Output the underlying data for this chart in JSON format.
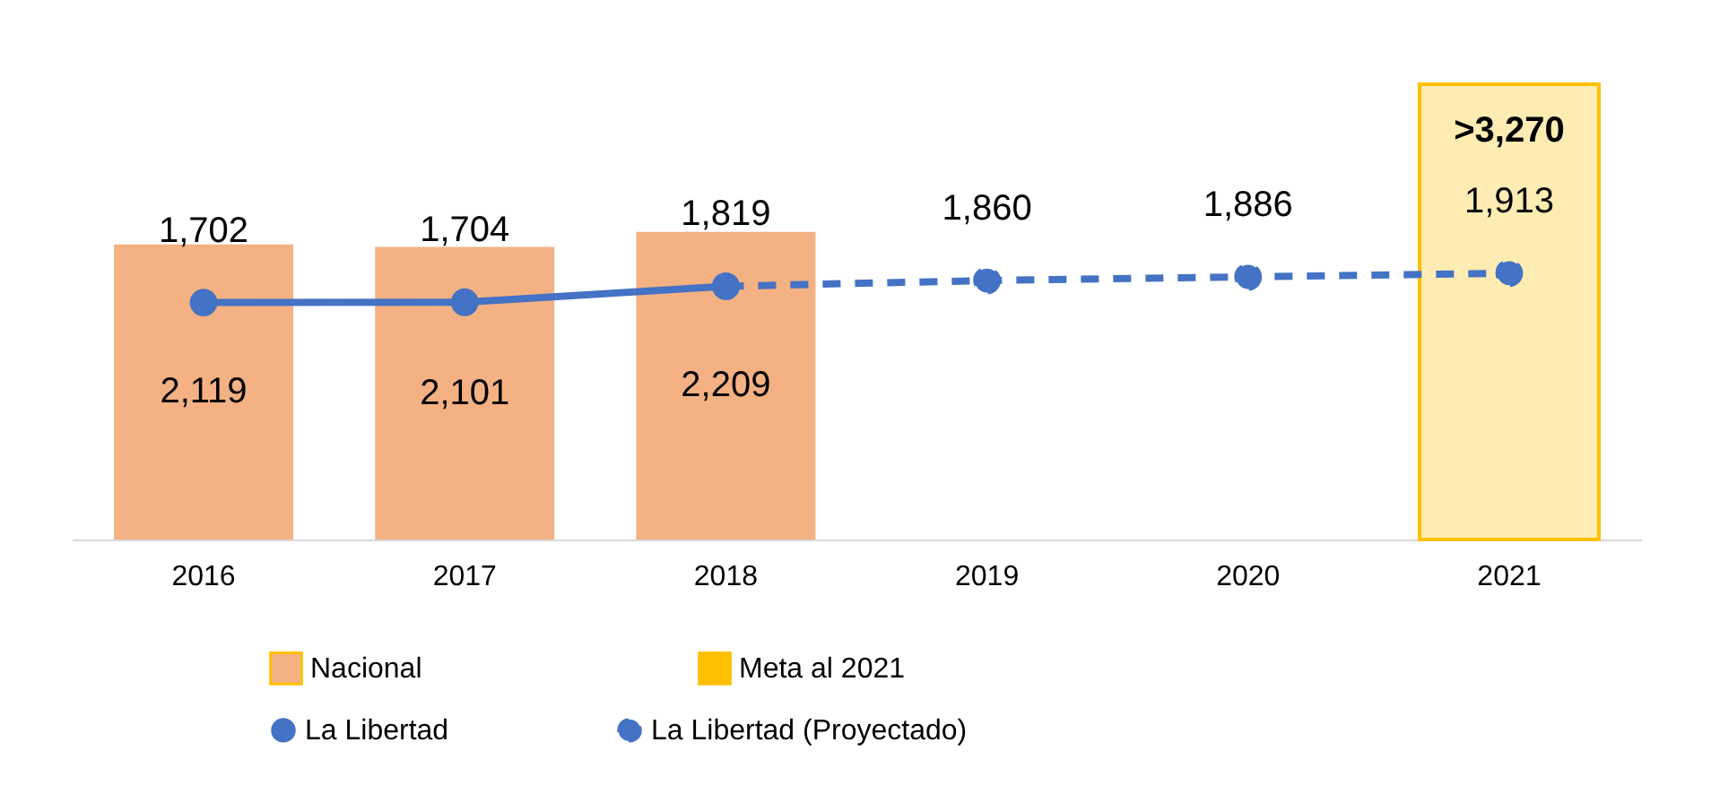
{
  "chart_data": {
    "type": "bar",
    "categories": [
      "2016",
      "2017",
      "2018",
      "2019",
      "2020",
      "2021"
    ],
    "series": [
      {
        "name": "Nacional",
        "color": "#f4b183",
        "values": [
          2119,
          2101,
          2209,
          null,
          null,
          null
        ],
        "value_labels": [
          "2,119",
          "2,101",
          "2,209",
          null,
          null,
          null
        ]
      },
      {
        "name": "Meta al 2021",
        "color": "#ffc000",
        "values": [
          null,
          null,
          null,
          null,
          null,
          3270
        ],
        "value_labels": [
          null,
          null,
          null,
          null,
          null,
          ">3,270"
        ]
      },
      {
        "name": "La Libertad",
        "type": "line",
        "color": "#4472c4",
        "line_style": "solid",
        "marker": "circle",
        "values": [
          1702,
          1704,
          1819,
          null,
          null,
          null
        ],
        "value_labels": [
          "1,702",
          "1,704",
          "1,819",
          null,
          null,
          null
        ]
      },
      {
        "name": "La Libertad (Proyectado)",
        "type": "line",
        "color": "#4472c4",
        "line_style": "dashed",
        "marker": "circle",
        "values": [
          null,
          null,
          1819,
          1860,
          1886,
          1913
        ],
        "value_labels": [
          null,
          null,
          null,
          "1,860",
          "1,886",
          "1,913"
        ]
      }
    ],
    "tick_labels": "x",
    "legend": "bottom"
  }
}
